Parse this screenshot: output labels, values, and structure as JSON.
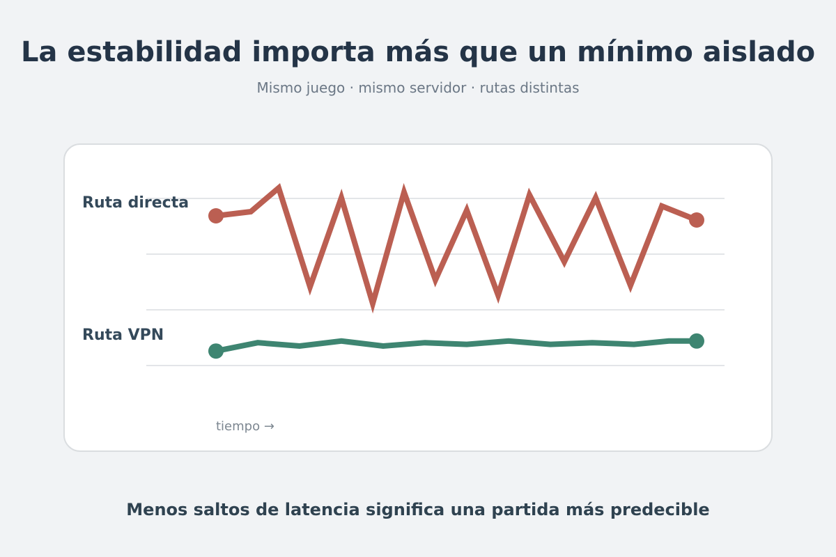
{
  "header": {
    "title": "La estabilidad importa más que un mínimo aislado",
    "subtitle": "Mismo juego · mismo servidor · rutas distintas"
  },
  "footer": {
    "caption": "Menos saltos de latencia significa una partida más predecible"
  },
  "chart_data": {
    "type": "line",
    "title": "La estabilidad importa más que un mínimo aislado",
    "subtitle": "Mismo juego · mismo servidor · rutas distintas",
    "xlabel": "tiempo →",
    "ylabel": "",
    "grid": true,
    "legend": "none",
    "series": [
      {
        "name": "Ruta directa",
        "color": "#bb5f52",
        "x": [
          0,
          0.5,
          0.9,
          1.35,
          1.8,
          2.25,
          2.7,
          3.15,
          3.6,
          4.05,
          4.5,
          5.0,
          5.45,
          5.95,
          6.4,
          6.9
        ],
        "values": [
          0.69,
          0.72,
          0.89,
          0.18,
          0.82,
          0.06,
          0.86,
          0.23,
          0.73,
          0.12,
          0.84,
          0.36,
          0.82,
          0.19,
          0.76,
          0.66
        ]
      },
      {
        "name": "Ruta VPN",
        "color": "#3e8571",
        "x": [
          0,
          0.6,
          1.2,
          1.8,
          2.4,
          3.0,
          3.6,
          4.2,
          4.8,
          5.4,
          6.0,
          6.5,
          6.9
        ],
        "values": [
          0.42,
          0.47,
          0.45,
          0.48,
          0.45,
          0.47,
          0.46,
          0.48,
          0.46,
          0.47,
          0.46,
          0.48,
          0.48
        ]
      }
    ]
  }
}
